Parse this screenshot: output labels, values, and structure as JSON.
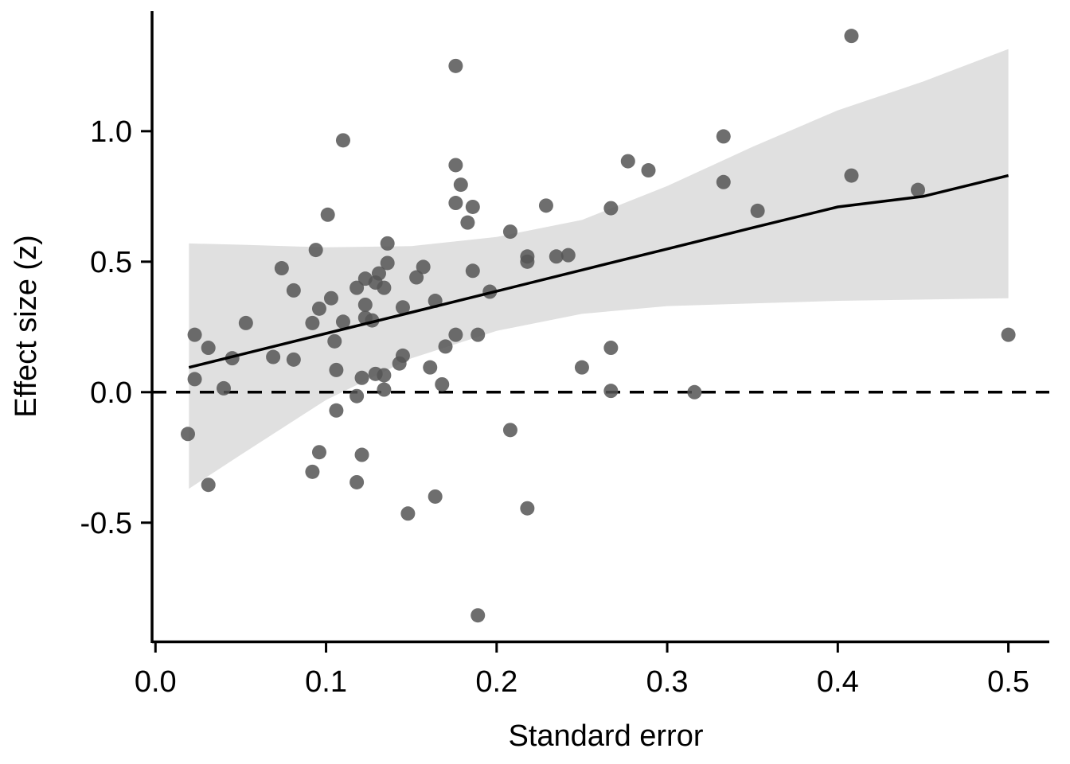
{
  "chart_data": {
    "type": "scatter",
    "title": "",
    "xlabel": "Standard error",
    "ylabel": "Effect size (z)",
    "xlim": [
      -0.002,
      0.524
    ],
    "ylim": [
      -0.955,
      1.46
    ],
    "x_ticks": [
      0.0,
      0.1,
      0.2,
      0.3,
      0.4,
      0.5
    ],
    "x_tick_labels": [
      "0.0",
      "0.1",
      "0.2",
      "0.3",
      "0.4",
      "0.5"
    ],
    "y_ticks": [
      -0.5,
      0.0,
      0.5,
      1.0
    ],
    "y_tick_labels": [
      "-0.5",
      "0.0",
      "0.5",
      "1.0"
    ],
    "grid": false,
    "legend": "none",
    "colors": {
      "points": "#555555",
      "fit_line": "#000000",
      "confidence_band": "#e0e0e0",
      "reference_line": "#000000"
    },
    "reference_line": {
      "y": 0.0,
      "style": "dashed"
    },
    "fit": {
      "type": "linear",
      "x": [
        0.0196,
        0.05,
        0.1,
        0.15,
        0.2,
        0.25,
        0.3,
        0.35,
        0.4,
        0.45,
        0.5
      ],
      "y": [
        0.095,
        0.144,
        0.225,
        0.306,
        0.387,
        0.468,
        0.549,
        0.63,
        0.71,
        0.75,
        0.83
      ],
      "ci_lower": [
        -0.37,
        -0.24,
        -0.03,
        0.13,
        0.235,
        0.3,
        0.33,
        0.34,
        0.35,
        0.355,
        0.36
      ],
      "ci_upper": [
        0.57,
        0.565,
        0.555,
        0.56,
        0.595,
        0.66,
        0.79,
        0.94,
        1.08,
        1.19,
        1.315
      ]
    },
    "series": [
      {
        "points": [
          [
            0.019,
            -0.16
          ],
          [
            0.023,
            0.22
          ],
          [
            0.023,
            0.05
          ],
          [
            0.031,
            -0.355
          ],
          [
            0.031,
            0.17
          ],
          [
            0.04,
            0.015
          ],
          [
            0.045,
            0.13
          ],
          [
            0.053,
            0.265
          ],
          [
            0.069,
            0.135
          ],
          [
            0.074,
            0.475
          ],
          [
            0.081,
            0.39
          ],
          [
            0.081,
            0.125
          ],
          [
            0.092,
            -0.305
          ],
          [
            0.092,
            0.265
          ],
          [
            0.094,
            0.545
          ],
          [
            0.096,
            -0.23
          ],
          [
            0.096,
            0.32
          ],
          [
            0.101,
            0.68
          ],
          [
            0.103,
            0.36
          ],
          [
            0.105,
            0.195
          ],
          [
            0.106,
            -0.07
          ],
          [
            0.106,
            0.085
          ],
          [
            0.11,
            0.965
          ],
          [
            0.11,
            0.27
          ],
          [
            0.118,
            -0.345
          ],
          [
            0.118,
            -0.015
          ],
          [
            0.118,
            0.4
          ],
          [
            0.121,
            -0.24
          ],
          [
            0.121,
            0.055
          ],
          [
            0.123,
            0.435
          ],
          [
            0.123,
            0.335
          ],
          [
            0.123,
            0.285
          ],
          [
            0.127,
            0.275
          ],
          [
            0.129,
            0.42
          ],
          [
            0.129,
            0.07
          ],
          [
            0.131,
            0.455
          ],
          [
            0.134,
            0.4
          ],
          [
            0.134,
            0.065
          ],
          [
            0.134,
            0.01
          ],
          [
            0.136,
            0.57
          ],
          [
            0.136,
            0.495
          ],
          [
            0.143,
            0.11
          ],
          [
            0.145,
            0.325
          ],
          [
            0.145,
            0.14
          ],
          [
            0.148,
            -0.465
          ],
          [
            0.153,
            0.44
          ],
          [
            0.157,
            0.48
          ],
          [
            0.161,
            0.095
          ],
          [
            0.164,
            0.35
          ],
          [
            0.164,
            -0.4
          ],
          [
            0.168,
            0.03
          ],
          [
            0.17,
            0.175
          ],
          [
            0.176,
            1.25
          ],
          [
            0.176,
            0.87
          ],
          [
            0.176,
            0.725
          ],
          [
            0.176,
            0.22
          ],
          [
            0.179,
            0.795
          ],
          [
            0.183,
            0.65
          ],
          [
            0.186,
            0.71
          ],
          [
            0.186,
            0.465
          ],
          [
            0.189,
            0.22
          ],
          [
            0.189,
            -0.855
          ],
          [
            0.196,
            0.385
          ],
          [
            0.208,
            0.615
          ],
          [
            0.208,
            -0.145
          ],
          [
            0.218,
            0.52
          ],
          [
            0.218,
            0.5
          ],
          [
            0.218,
            -0.445
          ],
          [
            0.229,
            0.715
          ],
          [
            0.235,
            0.52
          ],
          [
            0.242,
            0.525
          ],
          [
            0.25,
            0.095
          ],
          [
            0.267,
            0.705
          ],
          [
            0.267,
            0.17
          ],
          [
            0.267,
            0.005
          ],
          [
            0.277,
            0.885
          ],
          [
            0.289,
            0.85
          ],
          [
            0.316,
            0.0
          ],
          [
            0.333,
            0.98
          ],
          [
            0.333,
            0.805
          ],
          [
            0.353,
            0.695
          ],
          [
            0.408,
            1.365
          ],
          [
            0.408,
            0.83
          ],
          [
            0.447,
            0.775
          ],
          [
            0.5,
            0.22
          ]
        ]
      }
    ]
  }
}
